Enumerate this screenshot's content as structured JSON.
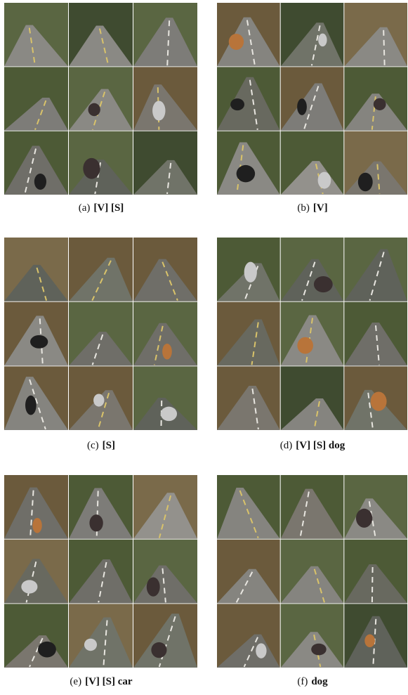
{
  "figures": [
    {
      "label": "(a)",
      "caption": "[V] [S]"
    },
    {
      "label": "(b)",
      "caption": "[V]"
    },
    {
      "label": "(c)",
      "caption": "[S]"
    },
    {
      "label": "(d)",
      "caption": "[V] [S] dog"
    },
    {
      "label": "(e)",
      "caption": "[V] [S] car"
    },
    {
      "label": "(f)",
      "caption": "dog"
    }
  ]
}
